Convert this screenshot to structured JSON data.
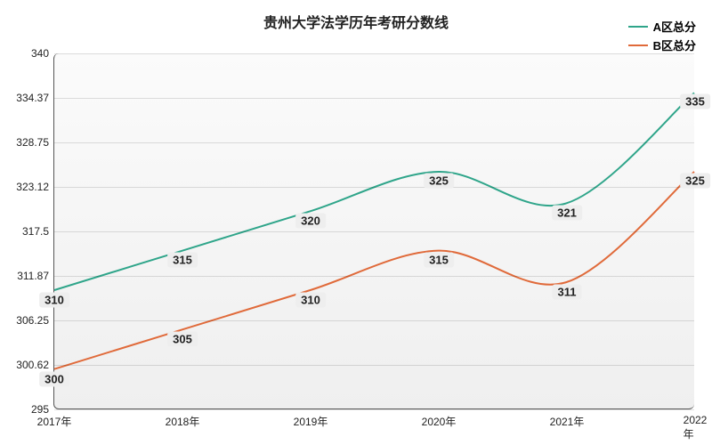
{
  "chart": {
    "type": "line",
    "title": "贵州大学法学历年考研分数线",
    "title_fontsize": 16,
    "title_color": "#222222",
    "background_gradient": [
      "#fbfbfb",
      "#efefef"
    ],
    "grid_color": "rgba(0,0,0,0.12)",
    "axis_color": "#555555",
    "label_fontsize": 12,
    "data_label_fontsize": 13,
    "data_label_bg": "#eeeeee",
    "xlim": [
      2017,
      2022
    ],
    "ylim": [
      295,
      340
    ],
    "yticks": [
      295,
      300.62,
      306.25,
      311.87,
      317.5,
      323.12,
      328.75,
      334.37,
      340
    ],
    "ytick_labels": [
      "295",
      "300.62",
      "306.25",
      "311.87",
      "317.5",
      "323.12",
      "328.75",
      "334.37",
      "340"
    ],
    "xticks": [
      2017,
      2018,
      2019,
      2020,
      2021,
      2022
    ],
    "xtick_labels": [
      "2017年",
      "2018年",
      "2019年",
      "2020年",
      "2021年",
      "2022年"
    ],
    "series": [
      {
        "name": "A区总分",
        "color": "#2fa58a",
        "line_width": 2,
        "x": [
          2017,
          2018,
          2019,
          2020,
          2021,
          2022
        ],
        "y": [
          310,
          315,
          320,
          325,
          321,
          335
        ],
        "labels": [
          "310",
          "315",
          "320",
          "325",
          "321",
          "335"
        ],
        "label_offset_y": 10
      },
      {
        "name": "B区总分",
        "color": "#e06a3a",
        "line_width": 2,
        "x": [
          2017,
          2018,
          2019,
          2020,
          2021,
          2022
        ],
        "y": [
          300,
          305,
          310,
          315,
          311,
          325
        ],
        "labels": [
          "300",
          "305",
          "310",
          "315",
          "311",
          "325"
        ],
        "label_offset_y": 10
      }
    ],
    "legend": {
      "position": "top-right"
    }
  }
}
